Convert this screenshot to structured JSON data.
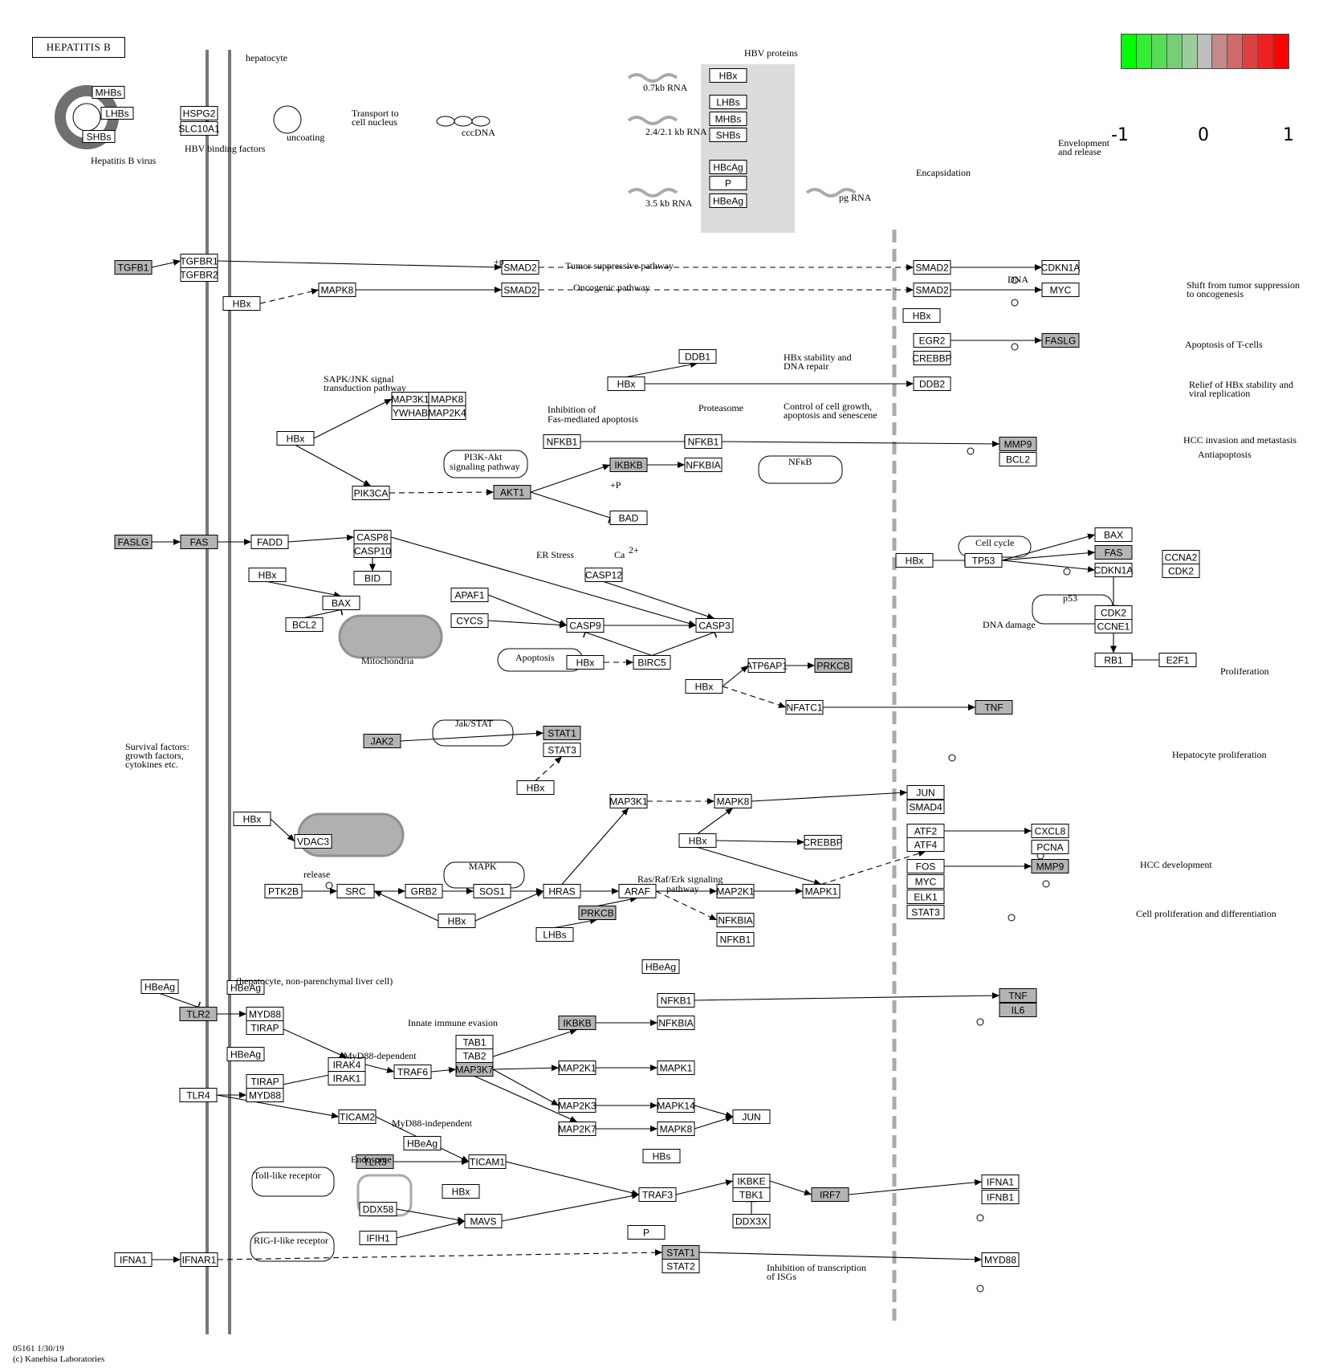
{
  "title": "HEPATITIS B",
  "footer": [
    "05161 1/30/19",
    "(c) Kanehisa Laboratories"
  ],
  "legend": {
    "colors": [
      "#00ff00",
      "#33ee33",
      "#55dd55",
      "#77cc77",
      "#9acd9a",
      "#bebebe",
      "#c48a8a",
      "#d06a6a",
      "#dd4040",
      "#ee2020",
      "#ff0000"
    ],
    "ticks": [
      "-1",
      "0",
      "1"
    ]
  },
  "colors": {
    "shaded_node": "#b4b4b4",
    "plain_node": "#ffffff",
    "membrane": "#777777",
    "hbv_panel": "#dcdcdc"
  },
  "nodes": [
    {
      "id": "MHBs",
      "label": "MHBs"
    },
    {
      "id": "LHBs",
      "label": "LHBs"
    },
    {
      "id": "SHBs",
      "label": "SHBs"
    },
    {
      "id": "HSPG2",
      "label": "HSPG2"
    },
    {
      "id": "SLC10A1",
      "label": "SLC10A1"
    },
    {
      "id": "HBx_p",
      "label": "HBx"
    },
    {
      "id": "LHBs_p",
      "label": "LHBs"
    },
    {
      "id": "MHBs_p",
      "label": "MHBs"
    },
    {
      "id": "SHBs_p",
      "label": "SHBs"
    },
    {
      "id": "HBcAg",
      "label": "HBcAg"
    },
    {
      "id": "P_p",
      "label": "P"
    },
    {
      "id": "HBeAg_p",
      "label": "HBeAg"
    },
    {
      "id": "TGFB1",
      "label": "TGFB1",
      "shaded": true
    },
    {
      "id": "TGFBR1",
      "label": "TGFBR1"
    },
    {
      "id": "TGFBR2",
      "label": "TGFBR2"
    },
    {
      "id": "SMAD2_a",
      "label": "SMAD2"
    },
    {
      "id": "SMAD2_b",
      "label": "SMAD2"
    },
    {
      "id": "HBx_1",
      "label": "HBx"
    },
    {
      "id": "MAPK8_1",
      "label": "MAPK8"
    },
    {
      "id": "SMAD2_c",
      "label": "SMAD2"
    },
    {
      "id": "SMAD2_d",
      "label": "SMAD2"
    },
    {
      "id": "CDKN1A_1",
      "label": "CDKN1A"
    },
    {
      "id": "MYC_1",
      "label": "MYC"
    },
    {
      "id": "HBx_2",
      "label": "HBx"
    },
    {
      "id": "EGR2",
      "label": "EGR2"
    },
    {
      "id": "CREBBP_1",
      "label": "CREBBP"
    },
    {
      "id": "FASLG_1",
      "label": "FASLG",
      "shaded": true
    },
    {
      "id": "DDB1",
      "label": "DDB1"
    },
    {
      "id": "HBx_3",
      "label": "HBx"
    },
    {
      "id": "DDB2",
      "label": "DDB2"
    },
    {
      "id": "MAP3K1_1",
      "label": "MAP3K1"
    },
    {
      "id": "MAPK8_2",
      "label": "MAPK8"
    },
    {
      "id": "YWHAB",
      "label": "YWHAB"
    },
    {
      "id": "MAP2K4",
      "label": "MAP2K4"
    },
    {
      "id": "HBx_4",
      "label": "HBx"
    },
    {
      "id": "NFKB1_a",
      "label": "NFKB1"
    },
    {
      "id": "NFKB1_b",
      "label": "NFKB1"
    },
    {
      "id": "IKBKB_1",
      "label": "IKBKB",
      "shaded": true
    },
    {
      "id": "NFKBIA_1",
      "label": "NFKBIA"
    },
    {
      "id": "MMP9_1",
      "label": "MMP9",
      "shaded": true
    },
    {
      "id": "BCL2_1",
      "label": "BCL2"
    },
    {
      "id": "PIK3CA",
      "label": "PIK3CA"
    },
    {
      "id": "AKT1",
      "label": "AKT1",
      "shaded": true
    },
    {
      "id": "BAD",
      "label": "BAD"
    },
    {
      "id": "FASLG_2",
      "label": "FASLG",
      "shaded": true
    },
    {
      "id": "FAS_1",
      "label": "FAS",
      "shaded": true
    },
    {
      "id": "FADD",
      "label": "FADD"
    },
    {
      "id": "CASP8",
      "label": "CASP8"
    },
    {
      "id": "CASP10",
      "label": "CASP10"
    },
    {
      "id": "BID",
      "label": "BID"
    },
    {
      "id": "HBx_5",
      "label": "HBx"
    },
    {
      "id": "BAX_1",
      "label": "BAX"
    },
    {
      "id": "BCL2_2",
      "label": "BCL2"
    },
    {
      "id": "APAF1",
      "label": "APAF1"
    },
    {
      "id": "CYCS",
      "label": "CYCS"
    },
    {
      "id": "CASP12",
      "label": "CASP12"
    },
    {
      "id": "CASP9",
      "label": "CASP9"
    },
    {
      "id": "CASP3",
      "label": "CASP3"
    },
    {
      "id": "HBx_6",
      "label": "HBx"
    },
    {
      "id": "BIRC5",
      "label": "BIRC5"
    },
    {
      "id": "HBx_7",
      "label": "HBx"
    },
    {
      "id": "TP53",
      "label": "TP53"
    },
    {
      "id": "BAX_2",
      "label": "BAX"
    },
    {
      "id": "FAS_2",
      "label": "FAS",
      "shaded": true
    },
    {
      "id": "CDKN1A_2",
      "label": "CDKN1A"
    },
    {
      "id": "CCNA2",
      "label": "CCNA2"
    },
    {
      "id": "CDK2_1",
      "label": "CDK2"
    },
    {
      "id": "CDK2_2",
      "label": "CDK2"
    },
    {
      "id": "CCNE1",
      "label": "CCNE1"
    },
    {
      "id": "RB1",
      "label": "RB1"
    },
    {
      "id": "E2F1",
      "label": "E2F1"
    },
    {
      "id": "HBx_8",
      "label": "HBx"
    },
    {
      "id": "ATP6AP1",
      "label": "ATP6AP1"
    },
    {
      "id": "PRKCB_1",
      "label": "PRKCB",
      "shaded": true
    },
    {
      "id": "NFATC1",
      "label": "NFATC1"
    },
    {
      "id": "TNF_1",
      "label": "TNF",
      "shaded": true
    },
    {
      "id": "JAK2",
      "label": "JAK2",
      "shaded": true
    },
    {
      "id": "STAT1_1",
      "label": "STAT1",
      "shaded": true
    },
    {
      "id": "STAT3_1",
      "label": "STAT3"
    },
    {
      "id": "HBx_9",
      "label": "HBx"
    },
    {
      "id": "HBx_10",
      "label": "HBx"
    },
    {
      "id": "VDAC3",
      "label": "VDAC3"
    },
    {
      "id": "PTK2B",
      "label": "PTK2B"
    },
    {
      "id": "SRC",
      "label": "SRC"
    },
    {
      "id": "GRB2",
      "label": "GRB2"
    },
    {
      "id": "SOS1",
      "label": "SOS1"
    },
    {
      "id": "HRAS",
      "label": "HRAS"
    },
    {
      "id": "HBx_11",
      "label": "HBx"
    },
    {
      "id": "MAP3K1_2",
      "label": "MAP3K1"
    },
    {
      "id": "MAPK8_3",
      "label": "MAPK8"
    },
    {
      "id": "JUN_1",
      "label": "JUN"
    },
    {
      "id": "SMAD4",
      "label": "SMAD4"
    },
    {
      "id": "HBx_12",
      "label": "HBx"
    },
    {
      "id": "CREBBP_2",
      "label": "CREBBP"
    },
    {
      "id": "ATF2",
      "label": "ATF2"
    },
    {
      "id": "ATF4",
      "label": "ATF4"
    },
    {
      "id": "CXCL8",
      "label": "CXCL8"
    },
    {
      "id": "PCNA",
      "label": "PCNA"
    },
    {
      "id": "ARAF",
      "label": "ARAF"
    },
    {
      "id": "PRKCB_2",
      "label": "PRKCB",
      "shaded": true
    },
    {
      "id": "LHBs_2",
      "label": "LHBs"
    },
    {
      "id": "MAP2K1_1",
      "label": "MAP2K1"
    },
    {
      "id": "MAPK1_1",
      "label": "MAPK1"
    },
    {
      "id": "FOS",
      "label": "FOS"
    },
    {
      "id": "MYC_2",
      "label": "MYC"
    },
    {
      "id": "ELK1",
      "label": "ELK1"
    },
    {
      "id": "STAT3_2",
      "label": "STAT3"
    },
    {
      "id": "MMP9_2",
      "label": "MMP9",
      "shaded": true
    },
    {
      "id": "NFKBIA_2",
      "label": "NFKBIA"
    },
    {
      "id": "NFKB1_c",
      "label": "NFKB1"
    },
    {
      "id": "HBeAg_1",
      "label": "HBeAg"
    },
    {
      "id": "TLR2",
      "label": "TLR2",
      "shaded": true
    },
    {
      "id": "HBeAg_2",
      "label": "HBeAg"
    },
    {
      "id": "MYD88_1",
      "label": "MYD88"
    },
    {
      "id": "TIRAP_1",
      "label": "TIRAP"
    },
    {
      "id": "HBeAg_3",
      "label": "HBeAg"
    },
    {
      "id": "TLR4",
      "label": "TLR4"
    },
    {
      "id": "TIRAP_2",
      "label": "TIRAP"
    },
    {
      "id": "MYD88_2",
      "label": "MYD88"
    },
    {
      "id": "IRAK4",
      "label": "IRAK4"
    },
    {
      "id": "IRAK1",
      "label": "IRAK1"
    },
    {
      "id": "TRAF6",
      "label": "TRAF6"
    },
    {
      "id": "TAB1",
      "label": "TAB1"
    },
    {
      "id": "TAB2",
      "label": "TAB2"
    },
    {
      "id": "MAP3K7",
      "label": "MAP3K7",
      "shaded": true
    },
    {
      "id": "IKBKB_2",
      "label": "IKBKB",
      "shaded": true
    },
    {
      "id": "NFKBIA_3",
      "label": "NFKBIA"
    },
    {
      "id": "HBeAg_4",
      "label": "HBeAg"
    },
    {
      "id": "NFKB1_d",
      "label": "NFKB1"
    },
    {
      "id": "TNF_2",
      "label": "TNF",
      "shaded": true
    },
    {
      "id": "IL6",
      "label": "IL6",
      "shaded": true
    },
    {
      "id": "MAP2K1_2",
      "label": "MAP2K1"
    },
    {
      "id": "MAPK1_2",
      "label": "MAPK1"
    },
    {
      "id": "MAP2K3",
      "label": "MAP2K3"
    },
    {
      "id": "MAPK14",
      "label": "MAPK14"
    },
    {
      "id": "MAP2K7",
      "label": "MAP2K7"
    },
    {
      "id": "MAPK8_4",
      "label": "MAPK8"
    },
    {
      "id": "JUN_2",
      "label": "JUN"
    },
    {
      "id": "HBs",
      "label": "HBs"
    },
    {
      "id": "TICAM2",
      "label": "TICAM2"
    },
    {
      "id": "HBeAg_5",
      "label": "HBeAg"
    },
    {
      "id": "TLR3",
      "label": "TLR3",
      "shaded": true
    },
    {
      "id": "TICAM1",
      "label": "TICAM1"
    },
    {
      "id": "TRAF3",
      "label": "TRAF3"
    },
    {
      "id": "IKBKE",
      "label": "IKBKE"
    },
    {
      "id": "TBK1",
      "label": "TBK1"
    },
    {
      "id": "IRF7",
      "label": "IRF7",
      "shaded": true
    },
    {
      "id": "IFNA1_1",
      "label": "IFNA1"
    },
    {
      "id": "IFNB1",
      "label": "IFNB1"
    },
    {
      "id": "HBx_13",
      "label": "HBx"
    },
    {
      "id": "DDX58",
      "label": "DDX58"
    },
    {
      "id": "MAVS",
      "label": "MAVS"
    },
    {
      "id": "IFIH1",
      "label": "IFIH1"
    },
    {
      "id": "DDX3X",
      "label": "DDX3X"
    },
    {
      "id": "P_2",
      "label": "P"
    },
    {
      "id": "IFNA1_2",
      "label": "IFNA1"
    },
    {
      "id": "IFNAR1",
      "label": "IFNAR1"
    },
    {
      "id": "STAT1_2",
      "label": "STAT1",
      "shaded": true
    },
    {
      "id": "STAT2",
      "label": "STAT2"
    },
    {
      "id": "MYD88_3",
      "label": "MYD88"
    }
  ],
  "labels": [
    "hepatocyte",
    "Hepatitis B virus",
    "HBV binding factors",
    "uncoating",
    "Transport to",
    "cell  nucleus",
    "cccDNA",
    "0.7kb RNA",
    "2.4/2.1 kb RNA",
    "3.5 kb RNA",
    "HBV proteins",
    "pg RNA",
    "Encapsidation",
    "Envelopment",
    "and release",
    "Tumor suppressive pathway",
    "Oncogenic pathway",
    "+p",
    "DNA",
    "Shift from tumor suppression",
    "to oncogenesis",
    "Apoptosis of T-cells",
    "HBx stability and",
    "DNA repair",
    "Proteasome",
    "Control of cell growth,",
    "apoptosis and  senescene",
    "Relief of HBx stability and",
    "viral replication",
    "SAPK/JNK signal",
    "transduction pathway",
    "Inhibition of",
    "Fas-mediated apoptosis",
    "PI3K-Akt",
    "signaling pathway",
    "NFκB",
    "HCC invasion and metastasis",
    "Antiapoptosis",
    "+P",
    "Cell cycle",
    "p53",
    "DNA damage",
    "Proliferation",
    "ER Stress",
    "Ca",
    "2+",
    "Mitochondria",
    "Apoptosis",
    "Jak/STAT",
    "Survival factors:",
    "growth factors,",
    "cytokines etc.",
    "Hepatocyte proliferation",
    "release",
    "MAPK",
    "Ras/Raf/Erk signaling",
    "pathway",
    "HCC development",
    "Cell proliferation and differentiation",
    "(hepatocyte, non-parenchymal liver cell)",
    "Innate immune evasion",
    "MyD88-dependent",
    "MyD88-independent",
    "Endosome",
    "Toll-like receptor",
    "RIG-I-like receptor",
    "Inhibition of transcription",
    "of ISGs"
  ]
}
